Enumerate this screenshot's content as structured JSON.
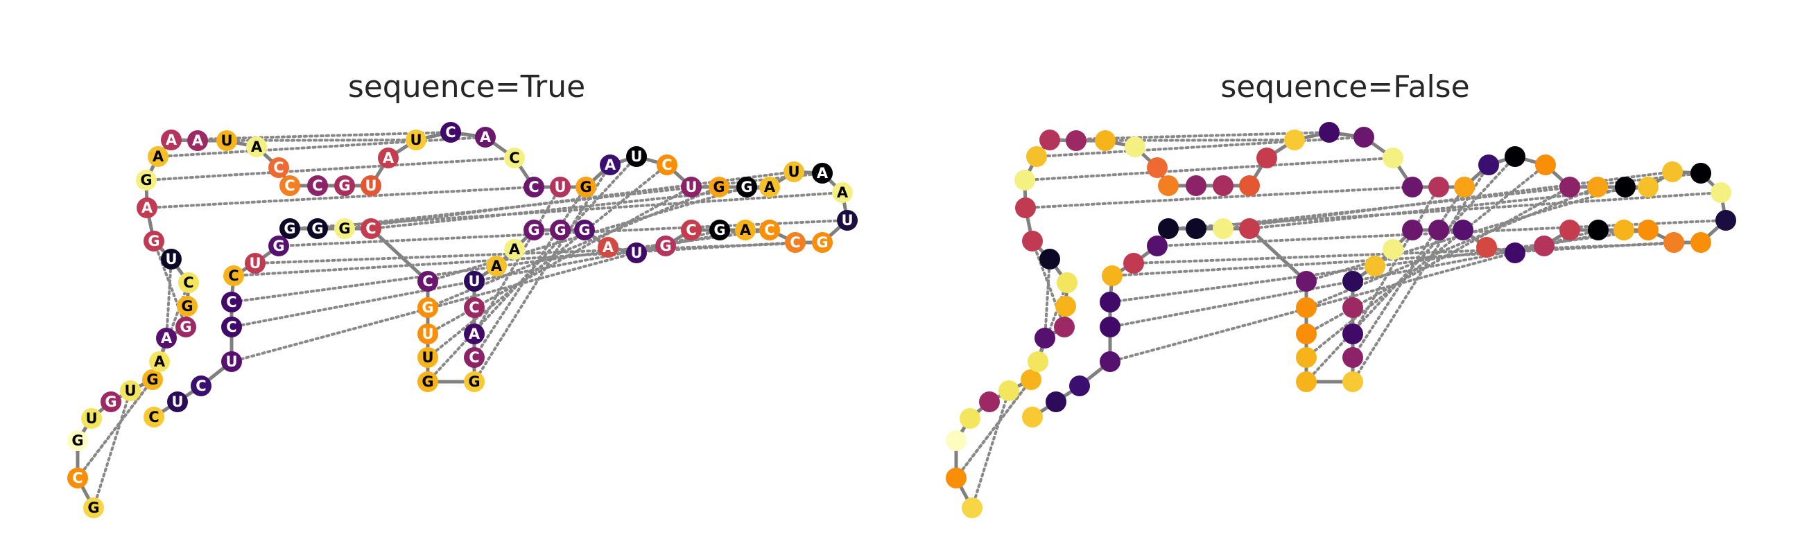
{
  "panels": [
    {
      "title": "sequence=True",
      "show_sequence": true
    },
    {
      "title": "sequence=False",
      "show_sequence": false
    }
  ],
  "colors": {
    "backbone": "#808080",
    "pair_line": "#888888",
    "nucleotide_palette": "inferno"
  },
  "nucleotides": [
    {
      "base": "G",
      "color": "#f6d645"
    },
    {
      "base": "C",
      "color": "#f98e09"
    },
    {
      "base": "G",
      "color": "#fcfdbf"
    },
    {
      "base": "U",
      "color": "#f3e55d"
    },
    {
      "base": "G",
      "color": "#9c2964"
    },
    {
      "base": "U",
      "color": "#f3e55d"
    },
    {
      "base": "G",
      "color": "#f6b31a"
    },
    {
      "base": "A",
      "color": "#f3e55d"
    },
    {
      "base": "A",
      "color": "#56106e"
    },
    {
      "base": "G",
      "color": "#9c2964"
    },
    {
      "base": "G",
      "color": "#f6b31a"
    },
    {
      "base": "C",
      "color": "#f3e55d"
    },
    {
      "base": "U",
      "color": "#0c0826"
    },
    {
      "base": "G",
      "color": "#c03a51"
    },
    {
      "base": "A",
      "color": "#c03a51"
    },
    {
      "base": "G",
      "color": "#f4f182"
    },
    {
      "base": "A",
      "color": "#f6c02a"
    },
    {
      "base": "A",
      "color": "#b5345b"
    },
    {
      "base": "A",
      "color": "#9c2964"
    },
    {
      "base": "U",
      "color": "#f6b31a"
    },
    {
      "base": "A",
      "color": "#f4f182"
    },
    {
      "base": "C",
      "color": "#ef6a32"
    },
    {
      "base": "C",
      "color": "#f27f21"
    },
    {
      "base": "C",
      "color": "#8c2368"
    },
    {
      "base": "G",
      "color": "#a82e5f"
    },
    {
      "base": "U",
      "color": "#e35832"
    },
    {
      "base": "A",
      "color": "#c43c4e"
    },
    {
      "base": "U",
      "color": "#f8c932"
    },
    {
      "base": "C",
      "color": "#420a68"
    },
    {
      "base": "A",
      "color": "#6b176e"
    },
    {
      "base": "C",
      "color": "#f4f182"
    },
    {
      "base": "C",
      "color": "#6b176e"
    },
    {
      "base": "U",
      "color": "#b5345b"
    },
    {
      "base": "G",
      "color": "#f9a216"
    },
    {
      "base": "A",
      "color": "#3b0f70"
    },
    {
      "base": "U",
      "color": "#000004"
    },
    {
      "base": "C",
      "color": "#f98e09"
    },
    {
      "base": "U",
      "color": "#8c2368"
    },
    {
      "base": "G",
      "color": "#f9a216"
    },
    {
      "base": "G",
      "color": "#000004"
    },
    {
      "base": "A",
      "color": "#f6c02a"
    },
    {
      "base": "U",
      "color": "#f6c02a"
    },
    {
      "base": "A",
      "color": "#000004"
    },
    {
      "base": "A",
      "color": "#f4f182"
    },
    {
      "base": "U",
      "color": "#1b0c41"
    },
    {
      "base": "G",
      "color": "#f98e09"
    },
    {
      "base": "C",
      "color": "#f27f21"
    },
    {
      "base": "C",
      "color": "#f98e09"
    },
    {
      "base": "A",
      "color": "#f6b31a"
    },
    {
      "base": "G",
      "color": "#000004"
    },
    {
      "base": "C",
      "color": "#c43c4e"
    },
    {
      "base": "G",
      "color": "#b5345b"
    },
    {
      "base": "U",
      "color": "#420a68"
    },
    {
      "base": "A",
      "color": "#d44842"
    },
    {
      "base": "G",
      "color": "#56106e"
    },
    {
      "base": "G",
      "color": "#6b176e"
    },
    {
      "base": "G",
      "color": "#6b176e"
    },
    {
      "base": "A",
      "color": "#f4f182"
    },
    {
      "base": "A",
      "color": "#f6c02a"
    },
    {
      "base": "U",
      "color": "#2c0b5a"
    },
    {
      "base": "C",
      "color": "#9c2964"
    },
    {
      "base": "A",
      "color": "#420a68"
    },
    {
      "base": "C",
      "color": "#8c2368"
    },
    {
      "base": "G",
      "color": "#f8c932"
    },
    {
      "base": "G",
      "color": "#f6b31a"
    },
    {
      "base": "U",
      "color": "#f6b31a"
    },
    {
      "base": "U",
      "color": "#f98e09"
    },
    {
      "base": "G",
      "color": "#f98e09"
    },
    {
      "base": "C",
      "color": "#6b176e"
    },
    {
      "base": "C",
      "color": "#c43c4e"
    },
    {
      "base": "G",
      "color": "#f4f182"
    },
    {
      "base": "G",
      "color": "#0c0826"
    },
    {
      "base": "G",
      "color": "#0c0826"
    },
    {
      "base": "G",
      "color": "#56106e"
    },
    {
      "base": "U",
      "color": "#c03a51"
    },
    {
      "base": "C",
      "color": "#f6b31a"
    },
    {
      "base": "C",
      "color": "#420a68"
    },
    {
      "base": "C",
      "color": "#420a68"
    },
    {
      "base": "U",
      "color": "#56106e"
    },
    {
      "base": "C",
      "color": "#3b0f70"
    },
    {
      "base": "U",
      "color": "#2c0b5a"
    },
    {
      "base": "C",
      "color": "#f8c932"
    }
  ],
  "pairs": [
    [
      0,
      5
    ],
    [
      1,
      6
    ],
    [
      6,
      1
    ],
    [
      7,
      11
    ],
    [
      8,
      12
    ],
    [
      9,
      13
    ],
    [
      14,
      31
    ],
    [
      15,
      30
    ],
    [
      16,
      29
    ],
    [
      17,
      28
    ],
    [
      18,
      27
    ],
    [
      32,
      61
    ],
    [
      33,
      62
    ],
    [
      34,
      63
    ],
    [
      35,
      64
    ],
    [
      36,
      65
    ],
    [
      37,
      66
    ],
    [
      38,
      67
    ],
    [
      39,
      68
    ],
    [
      40,
      69
    ],
    [
      41,
      70
    ],
    [
      42,
      71
    ],
    [
      43,
      72
    ],
    [
      44,
      73
    ],
    [
      45,
      74
    ],
    [
      46,
      75
    ],
    [
      47,
      76
    ],
    [
      48,
      77
    ],
    [
      49,
      78
    ]
  ]
}
